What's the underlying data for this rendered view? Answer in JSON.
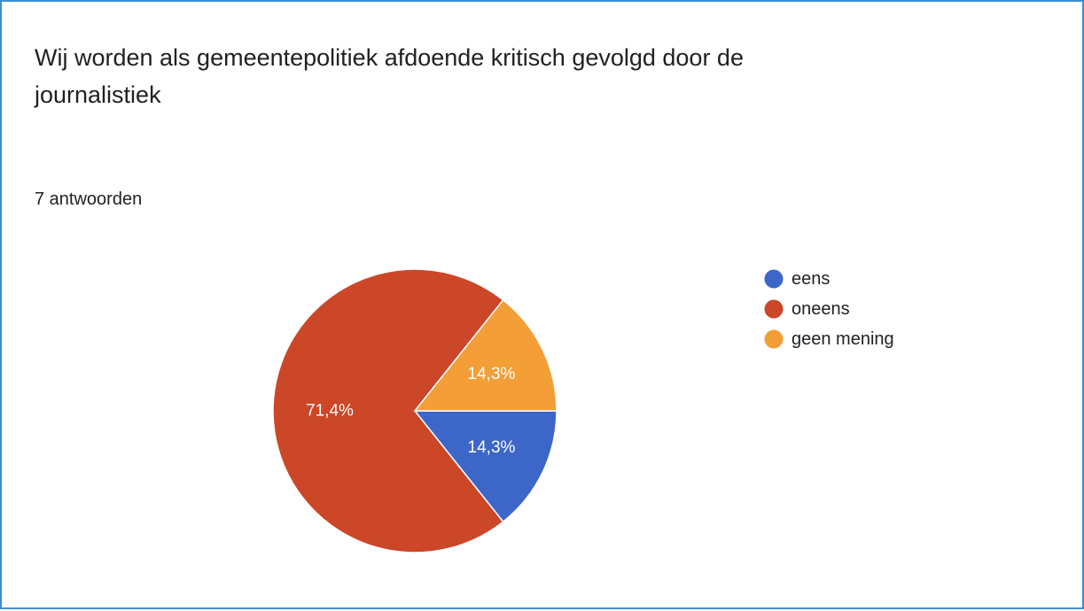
{
  "header": {
    "title": "Wij worden als gemeentepolitiek afdoende kritisch gevolgd door de journalistiek",
    "response_count": "7 antwoorden"
  },
  "chart_data": {
    "type": "pie",
    "categories": [
      "eens",
      "oneens",
      "geen mening"
    ],
    "values": [
      14.3,
      71.4,
      14.3
    ],
    "value_labels": [
      "14,3%",
      "71,4%",
      "14,3%"
    ],
    "colors": [
      "#3c66c8",
      "#cc4628",
      "#f39e36"
    ],
    "legend": "right",
    "start_angle_deg": 0,
    "direction": "clockwise"
  }
}
